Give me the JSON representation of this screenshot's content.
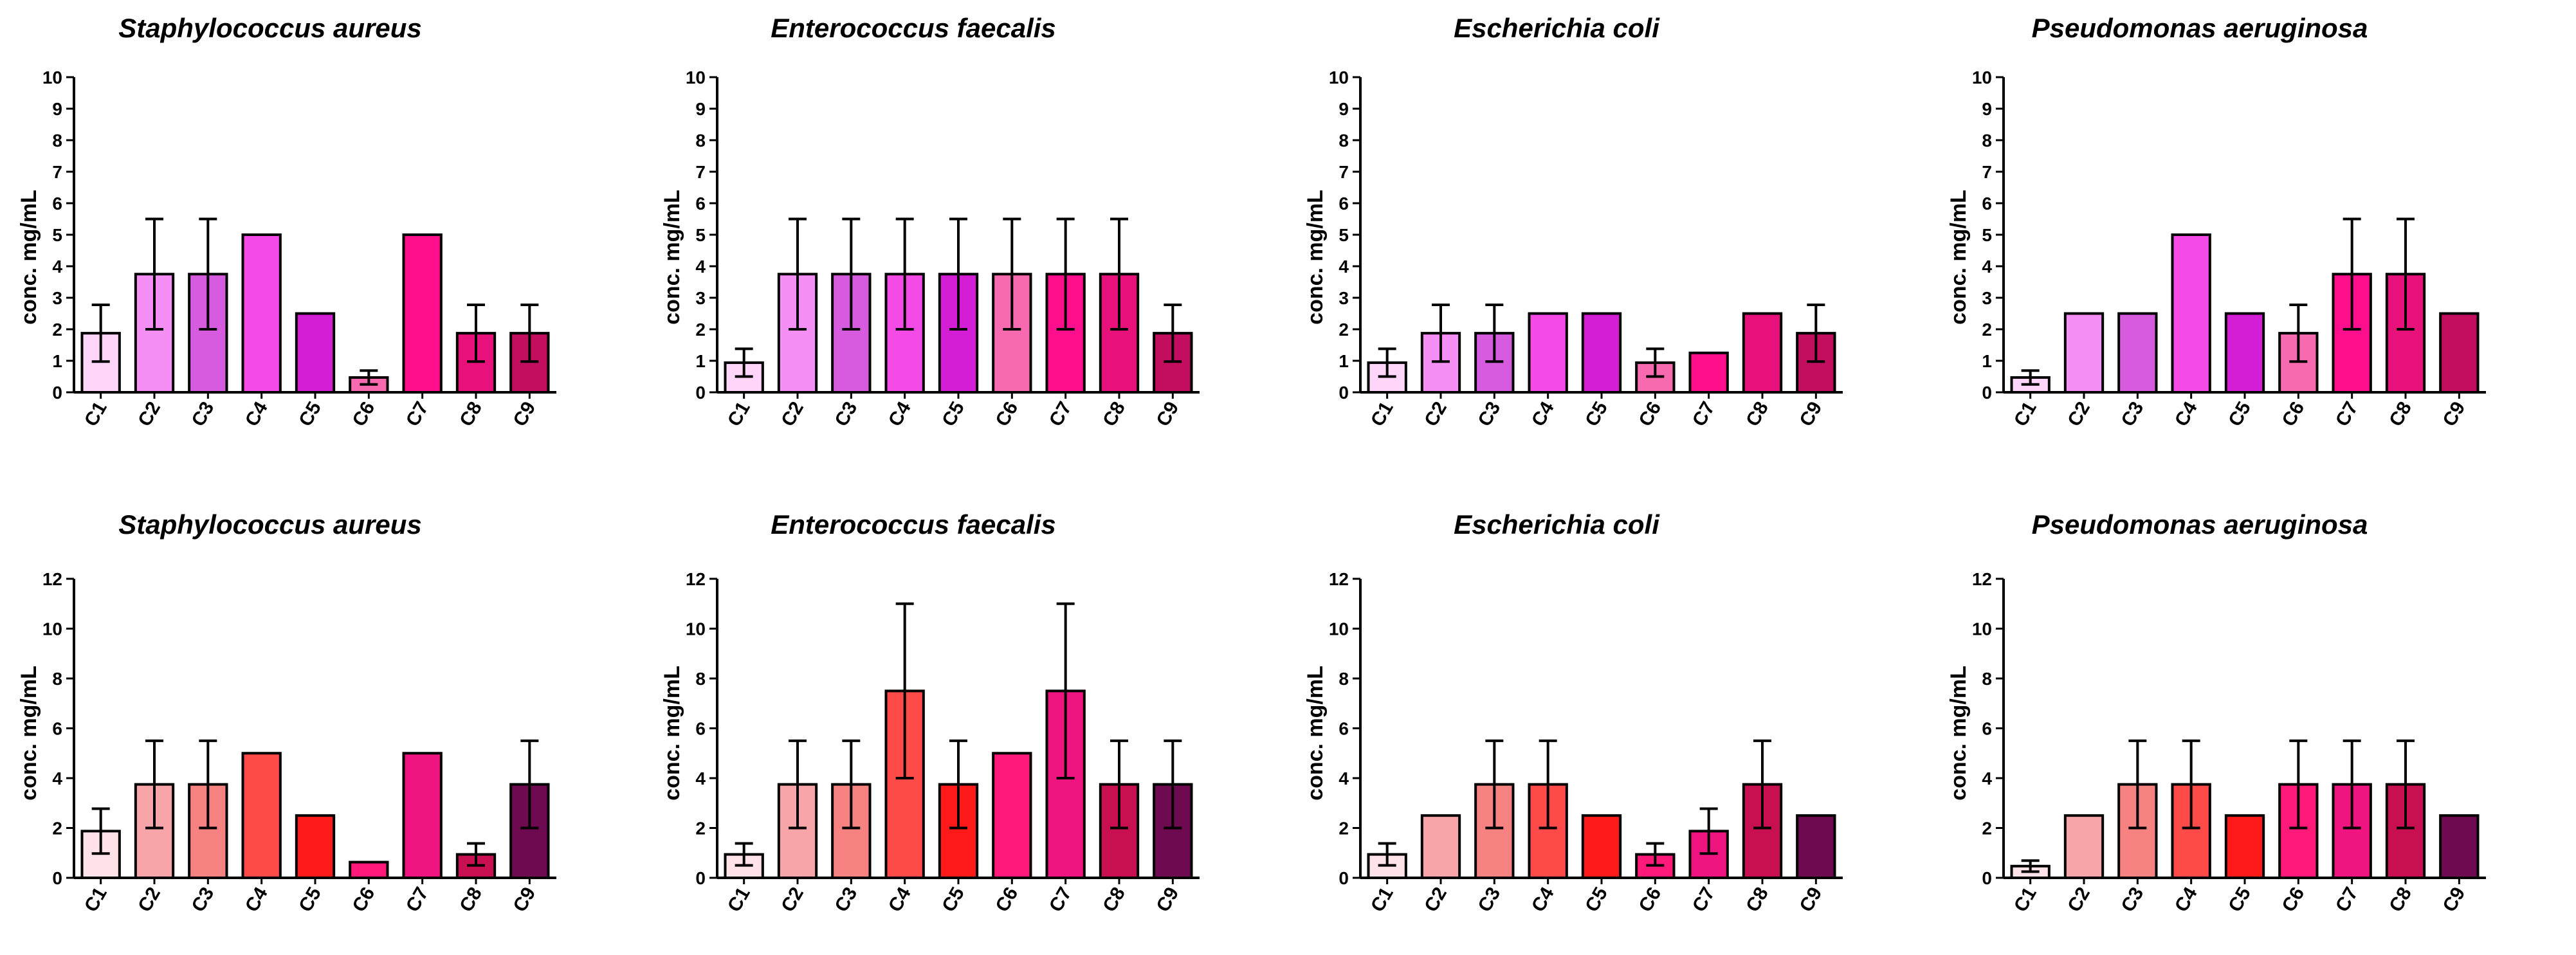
{
  "chart_data": [
    {
      "type": "bar",
      "title": "Staphylococcus aureus",
      "ylabel": "conc. mg/mL",
      "xlabel": "",
      "ylim": [
        0,
        10
      ],
      "yticks": [
        0,
        1,
        2,
        3,
        4,
        5,
        6,
        7,
        8,
        9,
        10
      ],
      "categories": [
        "C1",
        "C2",
        "C3",
        "C4",
        "C5",
        "C6",
        "C7",
        "C8",
        "C9"
      ],
      "values": [
        1.875,
        3.75,
        3.75,
        5.0,
        2.5,
        0.47,
        5.0,
        1.875,
        1.875
      ],
      "errors": [
        0.9,
        1.75,
        1.75,
        0,
        0,
        0.22,
        0,
        0.9,
        0.9
      ],
      "colors": [
        "#FFD6FA",
        "#F58FF5",
        "#D65BDE",
        "#F54BE6",
        "#D31ED6",
        "#F76AB0",
        "#FF0F8B",
        "#E8107A",
        "#C30E5F"
      ]
    },
    {
      "type": "bar",
      "title": "Enterococcus faecalis",
      "ylabel": "conc. mg/mL",
      "xlabel": "",
      "ylim": [
        0,
        10
      ],
      "yticks": [
        0,
        1,
        2,
        3,
        4,
        5,
        6,
        7,
        8,
        9,
        10
      ],
      "categories": [
        "C1",
        "C2",
        "C3",
        "C4",
        "C5",
        "C6",
        "C7",
        "C8",
        "C9"
      ],
      "values": [
        0.94,
        3.75,
        3.75,
        3.75,
        3.75,
        3.75,
        3.75,
        3.75,
        1.875
      ],
      "errors": [
        0.44,
        1.75,
        1.75,
        1.75,
        1.75,
        1.75,
        1.75,
        1.75,
        0.9
      ],
      "colors": [
        "#FFD6FA",
        "#F58FF5",
        "#D65BDE",
        "#F54BE6",
        "#D31ED6",
        "#F76AB0",
        "#FF0F8B",
        "#E8107A",
        "#C30E5F"
      ]
    },
    {
      "type": "bar",
      "title": "Escherichia coli",
      "ylabel": "conc. mg/mL",
      "xlabel": "",
      "ylim": [
        0,
        10
      ],
      "yticks": [
        0,
        1,
        2,
        3,
        4,
        5,
        6,
        7,
        8,
        9,
        10
      ],
      "categories": [
        "C1",
        "C2",
        "C3",
        "C4",
        "C5",
        "C6",
        "C7",
        "C8",
        "C9"
      ],
      "values": [
        0.94,
        1.875,
        1.875,
        2.5,
        2.5,
        0.94,
        1.25,
        2.5,
        1.875
      ],
      "errors": [
        0.44,
        0.9,
        0.9,
        0,
        0,
        0.44,
        0,
        0,
        0.9
      ],
      "colors": [
        "#FFD6FA",
        "#F58FF5",
        "#D65BDE",
        "#F54BE6",
        "#D31ED6",
        "#F76AB0",
        "#FF0F8B",
        "#E8107A",
        "#C30E5F"
      ]
    },
    {
      "type": "bar",
      "title": "Pseudomonas aeruginosa",
      "ylabel": "conc. mg/mL",
      "xlabel": "",
      "ylim": [
        0,
        10
      ],
      "yticks": [
        0,
        1,
        2,
        3,
        4,
        5,
        6,
        7,
        8,
        9,
        10
      ],
      "categories": [
        "C1",
        "C2",
        "C3",
        "C4",
        "C5",
        "C6",
        "C7",
        "C8",
        "C9"
      ],
      "values": [
        0.47,
        2.5,
        2.5,
        5.0,
        2.5,
        1.875,
        3.75,
        3.75,
        2.5
      ],
      "errors": [
        0.22,
        0,
        0,
        0,
        0,
        0.9,
        1.75,
        1.75,
        0
      ],
      "colors": [
        "#FFD6FA",
        "#F58FF5",
        "#D65BDE",
        "#F54BE6",
        "#D31ED6",
        "#F76AB0",
        "#FF0F8B",
        "#E8107A",
        "#C30E5F"
      ]
    },
    {
      "type": "bar",
      "title": "Staphylococcus aureus",
      "ylabel": "conc. mg/mL",
      "xlabel": "",
      "ylim": [
        0,
        12
      ],
      "yticks": [
        0,
        2,
        4,
        6,
        8,
        10,
        12
      ],
      "categories": [
        "C1",
        "C2",
        "C3",
        "C4",
        "C5",
        "C6",
        "C7",
        "C8",
        "C9"
      ],
      "values": [
        1.875,
        3.75,
        3.75,
        5.0,
        2.5,
        0.63,
        5.0,
        0.94,
        3.75
      ],
      "errors": [
        0.9,
        1.75,
        1.75,
        0,
        0,
        0,
        0,
        0.44,
        1.75
      ],
      "colors": [
        "#FFE3E8",
        "#F7A5A8",
        "#F78282",
        "#FF4A4A",
        "#FF1A1A",
        "#FF1A7A",
        "#F01480",
        "#C70F52",
        "#6E0A50"
      ]
    },
    {
      "type": "bar",
      "title": "Enterococcus faecalis",
      "ylabel": "conc. mg/mL",
      "xlabel": "",
      "ylim": [
        0,
        12
      ],
      "yticks": [
        0,
        2,
        4,
        6,
        8,
        10,
        12
      ],
      "categories": [
        "C1",
        "C2",
        "C3",
        "C4",
        "C5",
        "C6",
        "C7",
        "C8",
        "C9"
      ],
      "values": [
        0.94,
        3.75,
        3.75,
        7.5,
        3.75,
        5.0,
        7.5,
        3.75,
        3.75
      ],
      "errors": [
        0.44,
        1.75,
        1.75,
        3.5,
        1.75,
        0,
        3.5,
        1.75,
        1.75
      ],
      "colors": [
        "#FFE3E8",
        "#F7A5A8",
        "#F78282",
        "#FF4A4A",
        "#FF1A1A",
        "#FF1A7A",
        "#F01480",
        "#C70F52",
        "#6E0A50"
      ]
    },
    {
      "type": "bar",
      "title": "Escherichia coli",
      "ylabel": "conc. mg/mL",
      "xlabel": "",
      "ylim": [
        0,
        12
      ],
      "yticks": [
        0,
        2,
        4,
        6,
        8,
        10,
        12
      ],
      "categories": [
        "C1",
        "C2",
        "C3",
        "C4",
        "C5",
        "C6",
        "C7",
        "C8",
        "C9"
      ],
      "values": [
        0.94,
        2.5,
        3.75,
        3.75,
        2.5,
        0.94,
        1.875,
        3.75,
        2.5
      ],
      "errors": [
        0.44,
        0,
        1.75,
        1.75,
        0,
        0.44,
        0.9,
        1.75,
        0
      ],
      "colors": [
        "#FFE3E8",
        "#F7A5A8",
        "#F78282",
        "#FF4A4A",
        "#FF1A1A",
        "#FF1A7A",
        "#F01480",
        "#C70F52",
        "#6E0A50"
      ]
    },
    {
      "type": "bar",
      "title": "Pseudomonas aeruginosa",
      "ylabel": "conc. mg/mL",
      "xlabel": "",
      "ylim": [
        0,
        12
      ],
      "yticks": [
        0,
        2,
        4,
        6,
        8,
        10,
        12
      ],
      "categories": [
        "C1",
        "C2",
        "C3",
        "C4",
        "C5",
        "C6",
        "C7",
        "C8",
        "C9"
      ],
      "values": [
        0.47,
        2.5,
        3.75,
        3.75,
        2.5,
        3.75,
        3.75,
        3.75,
        2.5
      ],
      "errors": [
        0.22,
        0,
        1.75,
        1.75,
        0,
        1.75,
        1.75,
        1.75,
        0
      ],
      "colors": [
        "#FFE3E8",
        "#F7A5A8",
        "#F78282",
        "#FF4A4A",
        "#FF1A1A",
        "#FF1A7A",
        "#F01480",
        "#C70F52",
        "#6E0A50"
      ]
    }
  ]
}
